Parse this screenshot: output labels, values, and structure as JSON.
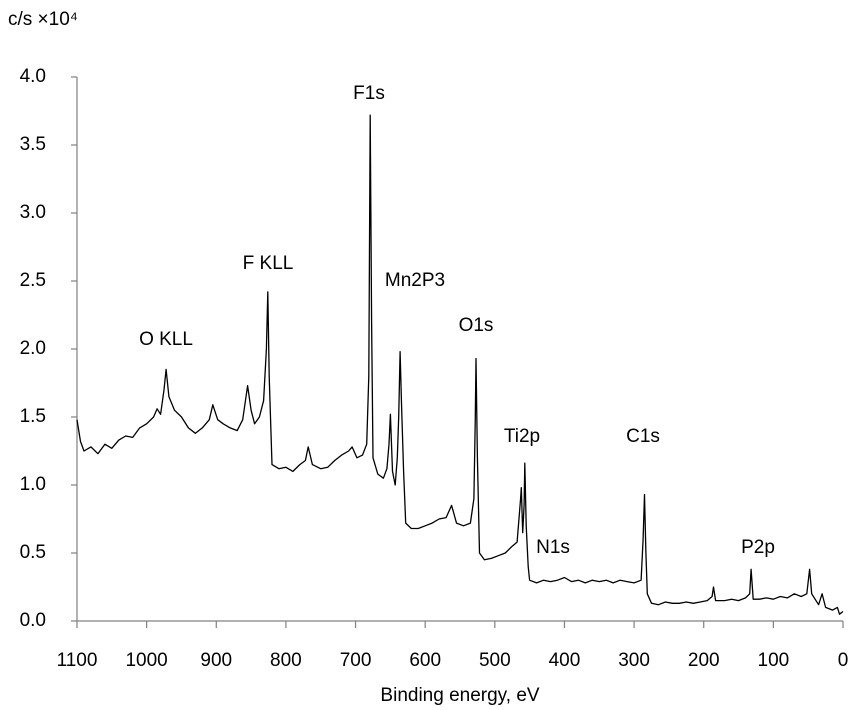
{
  "chart_data": {
    "type": "line",
    "y_axis_label": "c/s ×10⁴",
    "x_axis_label": "Binding energy, eV",
    "annotations": [
      "O KLL",
      "F KLL",
      "F1s",
      "Mn2P3",
      "O1s",
      "Ti2p",
      "N1s",
      "C1s",
      "P2p"
    ],
    "xlim": [
      1100,
      0
    ],
    "xticks": [
      1100,
      1000,
      900,
      800,
      700,
      600,
      500,
      400,
      300,
      200,
      100,
      0
    ],
    "ylim": [
      0,
      4
    ],
    "yticks": [
      {
        "value": 0,
        "label": "0.0"
      },
      0.5,
      {
        "value": 1,
        "label": "1.0"
      },
      1.5,
      {
        "value": 2,
        "label": "2.0"
      },
      2.5,
      {
        "value": 3,
        "label": "3.0"
      },
      3.5,
      {
        "value": 4,
        "label": "4.0"
      }
    ],
    "grid": false,
    "color": "#000000",
    "x": [
      1100,
      1095,
      1090,
      1080,
      1070,
      1060,
      1050,
      1040,
      1030,
      1020,
      1010,
      1000,
      990,
      985,
      980,
      975,
      972,
      968,
      960,
      950,
      940,
      930,
      920,
      910,
      905,
      898,
      890,
      880,
      870,
      862,
      855,
      850,
      845,
      838,
      832,
      828,
      826,
      824,
      820,
      810,
      800,
      790,
      780,
      772,
      768,
      762,
      750,
      740,
      730,
      720,
      710,
      705,
      698,
      690,
      684,
      681,
      679,
      677,
      675,
      668,
      660,
      655,
      652,
      650,
      647,
      643,
      640,
      638,
      636,
      634,
      631,
      628,
      620,
      610,
      600,
      590,
      580,
      570,
      562,
      555,
      545,
      535,
      530,
      528,
      527,
      525,
      522,
      515,
      505,
      495,
      485,
      475,
      468,
      463,
      462,
      460,
      458,
      457,
      455,
      452,
      450,
      440,
      430,
      420,
      410,
      400,
      390,
      380,
      370,
      360,
      350,
      340,
      330,
      320,
      310,
      300,
      290,
      287,
      285,
      283,
      281,
      275,
      265,
      255,
      245,
      235,
      225,
      215,
      205,
      195,
      188,
      186,
      183,
      170,
      160,
      150,
      140,
      134,
      132,
      129,
      120,
      110,
      100,
      90,
      80,
      70,
      60,
      52,
      48,
      45,
      40,
      35,
      30,
      25,
      15,
      8,
      5,
      0
    ],
    "values": [
      1.48,
      1.32,
      1.25,
      1.28,
      1.23,
      1.3,
      1.27,
      1.33,
      1.36,
      1.35,
      1.42,
      1.45,
      1.5,
      1.56,
      1.52,
      1.7,
      1.85,
      1.65,
      1.55,
      1.5,
      1.42,
      1.38,
      1.42,
      1.48,
      1.59,
      1.48,
      1.45,
      1.42,
      1.4,
      1.48,
      1.73,
      1.55,
      1.45,
      1.5,
      1.62,
      2.0,
      2.42,
      1.8,
      1.15,
      1.12,
      1.13,
      1.1,
      1.15,
      1.18,
      1.28,
      1.15,
      1.12,
      1.13,
      1.18,
      1.22,
      1.25,
      1.28,
      1.2,
      1.22,
      1.3,
      1.8,
      3.72,
      2.2,
      1.2,
      1.08,
      1.05,
      1.12,
      1.3,
      1.52,
      1.1,
      1.0,
      1.2,
      1.5,
      1.98,
      1.6,
      1.1,
      0.72,
      0.68,
      0.68,
      0.7,
      0.72,
      0.75,
      0.76,
      0.85,
      0.72,
      0.7,
      0.72,
      0.9,
      1.5,
      1.93,
      1.2,
      0.5,
      0.45,
      0.46,
      0.48,
      0.5,
      0.55,
      0.58,
      0.9,
      0.98,
      0.65,
      0.85,
      1.16,
      0.7,
      0.4,
      0.3,
      0.28,
      0.3,
      0.29,
      0.3,
      0.32,
      0.29,
      0.3,
      0.28,
      0.3,
      0.29,
      0.3,
      0.28,
      0.3,
      0.29,
      0.28,
      0.3,
      0.6,
      0.93,
      0.5,
      0.2,
      0.13,
      0.12,
      0.14,
      0.13,
      0.13,
      0.14,
      0.13,
      0.14,
      0.15,
      0.18,
      0.25,
      0.15,
      0.15,
      0.16,
      0.15,
      0.17,
      0.2,
      0.38,
      0.16,
      0.16,
      0.17,
      0.16,
      0.18,
      0.17,
      0.2,
      0.18,
      0.2,
      0.38,
      0.2,
      0.16,
      0.12,
      0.2,
      0.1,
      0.08,
      0.1,
      0.05,
      0.07
    ]
  }
}
